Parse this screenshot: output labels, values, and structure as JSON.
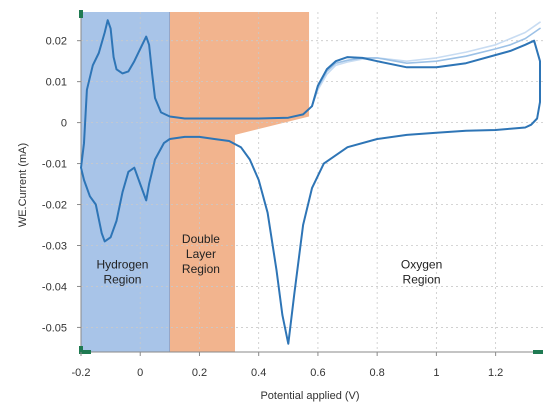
{
  "chart_data": {
    "type": "line",
    "xlabel": "Potential applied (V)",
    "ylabel": "WE.Current (mA)",
    "xlim": [
      -0.2,
      1.36
    ],
    "ylim": [
      -0.056,
      0.027
    ],
    "x_ticks": [
      -0.2,
      0,
      0.2,
      0.4,
      0.6,
      0.8,
      1,
      1.2
    ],
    "x_tick_labels": [
      "-0.2",
      "0",
      "0.2",
      "0.4",
      "0.6",
      "0.8",
      "1",
      "1.2"
    ],
    "y_ticks": [
      0.02,
      0.01,
      0,
      -0.01,
      -0.02,
      -0.03,
      -0.04,
      -0.05
    ],
    "y_tick_labels": [
      "0.02",
      "0.01",
      "0",
      "-0.01",
      "-0.02",
      "-0.03",
      "-0.04",
      "-0.05"
    ],
    "grid": true,
    "regions": [
      {
        "label_lines": [
          "Hydrogen",
          "Region"
        ],
        "x_start": -0.2,
        "x_end": 0.1,
        "color": "#a8c4e8"
      },
      {
        "label_lines": [
          "Double",
          "Layer",
          "Region"
        ],
        "x_start": 0.1,
        "x_end": 0.32,
        "x_end_top": 0.57,
        "color": "#f2b48e"
      },
      {
        "label_lines": [
          "Oxygen",
          "Region"
        ],
        "x_start": 0.32,
        "x_end": 1.36,
        "color": "none"
      }
    ],
    "series": [
      {
        "color": "#2e75b6",
        "x": [
          -0.2,
          -0.19,
          -0.18,
          -0.16,
          -0.14,
          -0.12,
          -0.11,
          -0.1,
          -0.09,
          -0.08,
          -0.06,
          -0.04,
          -0.02,
          0,
          0.02,
          0.03,
          0.04,
          0.05,
          0.07,
          0.1,
          0.15,
          0.2,
          0.3,
          0.4,
          0.5,
          0.55,
          0.58,
          0.6,
          0.63,
          0.66,
          0.7,
          0.75,
          0.8,
          0.9,
          1,
          1.1,
          1.2,
          1.25,
          1.3,
          1.33,
          1.35,
          1.35,
          1.34,
          1.32,
          1.3,
          1.25,
          1.2,
          1.1,
          1.0,
          0.9,
          0.8,
          0.7,
          0.62,
          0.58,
          0.55,
          0.52,
          0.5,
          0.48,
          0.46,
          0.43,
          0.4,
          0.37,
          0.34,
          0.3,
          0.25,
          0.2,
          0.15,
          0.1,
          0.08,
          0.05,
          0.03,
          0.02,
          0,
          -0.02,
          -0.04,
          -0.06,
          -0.08,
          -0.1,
          -0.12,
          -0.13,
          -0.15,
          -0.17,
          -0.19,
          -0.2
        ],
        "y": [
          -0.011,
          -0.005,
          0.008,
          0.014,
          0.017,
          0.022,
          0.025,
          0.023,
          0.016,
          0.013,
          0.012,
          0.0125,
          0.015,
          0.018,
          0.021,
          0.019,
          0.012,
          0.006,
          0.0025,
          0.0015,
          0.001,
          0.001,
          0.001,
          0.001,
          0.0012,
          0.002,
          0.004,
          0.009,
          0.013,
          0.015,
          0.016,
          0.0158,
          0.015,
          0.0135,
          0.0135,
          0.0145,
          0.0165,
          0.0175,
          0.019,
          0.02,
          0.015,
          0.005,
          0.001,
          -0.0005,
          -0.0012,
          -0.0015,
          -0.0018,
          -0.002,
          -0.0025,
          -0.003,
          -0.004,
          -0.006,
          -0.01,
          -0.016,
          -0.025,
          -0.042,
          -0.054,
          -0.047,
          -0.036,
          -0.022,
          -0.014,
          -0.009,
          -0.006,
          -0.0045,
          -0.004,
          -0.0035,
          -0.0035,
          -0.004,
          -0.005,
          -0.009,
          -0.015,
          -0.019,
          -0.015,
          -0.011,
          -0.012,
          -0.017,
          -0.024,
          -0.028,
          -0.029,
          -0.027,
          -0.02,
          -0.018,
          -0.014,
          -0.011
        ]
      },
      {
        "color": "#9cc1e6",
        "x": [
          0.58,
          0.6,
          0.63,
          0.66,
          0.7,
          0.75,
          0.8,
          0.9,
          1,
          1.1,
          1.2,
          1.25,
          1.3,
          1.33,
          1.35
        ],
        "y": [
          0.004,
          0.0085,
          0.0125,
          0.0145,
          0.0152,
          0.0158,
          0.0158,
          0.0145,
          0.015,
          0.0162,
          0.018,
          0.019,
          0.0205,
          0.022,
          0.023
        ]
      },
      {
        "color": "#c8dcf2",
        "x": [
          0.58,
          0.6,
          0.63,
          0.66,
          0.7,
          0.75,
          0.8,
          0.9,
          1,
          1.1,
          1.2,
          1.25,
          1.3,
          1.33,
          1.35
        ],
        "y": [
          0.004,
          0.008,
          0.0118,
          0.014,
          0.0148,
          0.0155,
          0.0158,
          0.015,
          0.0158,
          0.0172,
          0.019,
          0.0205,
          0.022,
          0.0235,
          0.0245
        ]
      }
    ]
  }
}
